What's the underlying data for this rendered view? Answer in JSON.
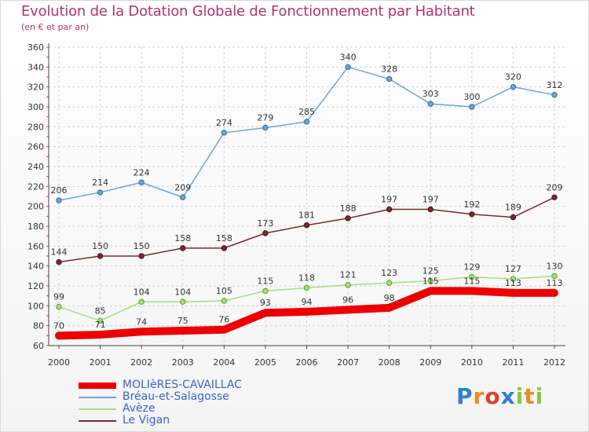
{
  "title": "Evolution de la Dotation Globale de Fonctionnement par Habitant",
  "subtitle": "(en € et par an)",
  "logo": {
    "letters": [
      "P",
      "r",
      "o",
      "x",
      "i",
      "t",
      "i"
    ]
  },
  "chart_data": {
    "type": "line",
    "x": [
      "2000",
      "2001",
      "2002",
      "2003",
      "2004",
      "2005",
      "2006",
      "2007",
      "2008",
      "2009",
      "2010",
      "2011",
      "2012"
    ],
    "ylim": [
      60,
      360
    ],
    "yticks": [
      60,
      80,
      100,
      120,
      140,
      160,
      180,
      200,
      220,
      240,
      260,
      280,
      300,
      320,
      340,
      360
    ],
    "grid": true,
    "legend_position": "bottom-left",
    "series": [
      {
        "name": "MOLIèRES-CAVAILLAC",
        "color": "#ee0000",
        "values": [
          70,
          71,
          74,
          75,
          76,
          93,
          94,
          96,
          98,
          115,
          115,
          113,
          113
        ]
      },
      {
        "name": "Bréau-et-Salagosse",
        "color": "#6ea3d8",
        "values": [
          206,
          214,
          224,
          209,
          274,
          279,
          285,
          340,
          328,
          303,
          300,
          320,
          312
        ]
      },
      {
        "name": "Avèze",
        "color": "#a6e07a",
        "values": [
          99,
          85,
          104,
          104,
          105,
          115,
          118,
          121,
          123,
          125,
          129,
          127,
          130
        ]
      },
      {
        "name": "Le Vigan",
        "color": "#7a2a30",
        "values": [
          144,
          150,
          150,
          158,
          158,
          173,
          181,
          188,
          197,
          197,
          192,
          189,
          209
        ]
      }
    ]
  }
}
